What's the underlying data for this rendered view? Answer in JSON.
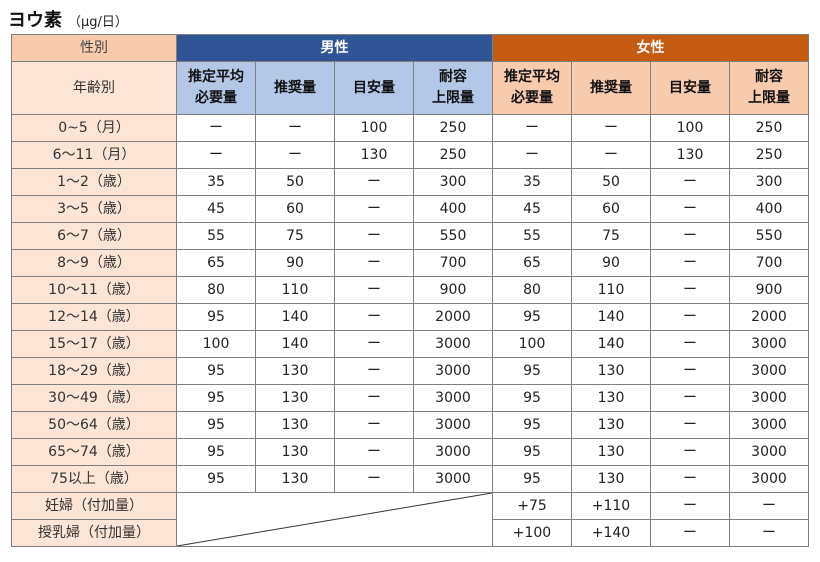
{
  "title": {
    "main": "ヨウ素",
    "unit": "（μg/日）"
  },
  "header": {
    "sex_label": "性別",
    "age_label": "年齢別",
    "male": "男性",
    "female": "女性",
    "cols": [
      {
        "line1": "推定平均",
        "line2": "必要量"
      },
      {
        "line1": "推奨量",
        "line2": ""
      },
      {
        "line1": "目安量",
        "line2": ""
      },
      {
        "line1": "耐容",
        "line2": "上限量"
      }
    ]
  },
  "rows": [
    {
      "age": "0~5（月）",
      "m": [
        "ー",
        "ー",
        "100",
        "250"
      ],
      "f": [
        "ー",
        "ー",
        "100",
        "250"
      ]
    },
    {
      "age": "6～11（月）",
      "m": [
        "ー",
        "ー",
        "130",
        "250"
      ],
      "f": [
        "ー",
        "ー",
        "130",
        "250"
      ]
    },
    {
      "age": "1～2（歳）",
      "m": [
        "35",
        "50",
        "ー",
        "300"
      ],
      "f": [
        "35",
        "50",
        "ー",
        "300"
      ]
    },
    {
      "age": "3～5（歳）",
      "m": [
        "45",
        "60",
        "ー",
        "400"
      ],
      "f": [
        "45",
        "60",
        "ー",
        "400"
      ]
    },
    {
      "age": "6～7（歳）",
      "m": [
        "55",
        "75",
        "ー",
        "550"
      ],
      "f": [
        "55",
        "75",
        "ー",
        "550"
      ]
    },
    {
      "age": "8～9（歳）",
      "m": [
        "65",
        "90",
        "ー",
        "700"
      ],
      "f": [
        "65",
        "90",
        "ー",
        "700"
      ]
    },
    {
      "age": "10～11（歳）",
      "m": [
        "80",
        "110",
        "ー",
        "900"
      ],
      "f": [
        "80",
        "110",
        "ー",
        "900"
      ]
    },
    {
      "age": "12～14（歳）",
      "m": [
        "95",
        "140",
        "ー",
        "2000"
      ],
      "f": [
        "95",
        "140",
        "ー",
        "2000"
      ]
    },
    {
      "age": "15～17（歳）",
      "m": [
        "100",
        "140",
        "ー",
        "3000"
      ],
      "f": [
        "100",
        "140",
        "ー",
        "3000"
      ]
    },
    {
      "age": "18～29（歳）",
      "m": [
        "95",
        "130",
        "ー",
        "3000"
      ],
      "f": [
        "95",
        "130",
        "ー",
        "3000"
      ]
    },
    {
      "age": "30～49（歳）",
      "m": [
        "95",
        "130",
        "ー",
        "3000"
      ],
      "f": [
        "95",
        "130",
        "ー",
        "3000"
      ]
    },
    {
      "age": "50～64（歳）",
      "m": [
        "95",
        "130",
        "ー",
        "3000"
      ],
      "f": [
        "95",
        "130",
        "ー",
        "3000"
      ]
    },
    {
      "age": "65～74（歳）",
      "m": [
        "95",
        "130",
        "ー",
        "3000"
      ],
      "f": [
        "95",
        "130",
        "ー",
        "3000"
      ]
    },
    {
      "age": "75以上（歳）",
      "m": [
        "95",
        "130",
        "ー",
        "3000"
      ],
      "f": [
        "95",
        "130",
        "ー",
        "3000"
      ]
    }
  ],
  "extra": [
    {
      "label": "妊婦（付加量）",
      "f": [
        "+75",
        "+110",
        "ー",
        "ー"
      ]
    },
    {
      "label": "授乳婦（付加量）",
      "f": [
        "+100",
        "+140",
        "ー",
        "ー"
      ]
    }
  ]
}
